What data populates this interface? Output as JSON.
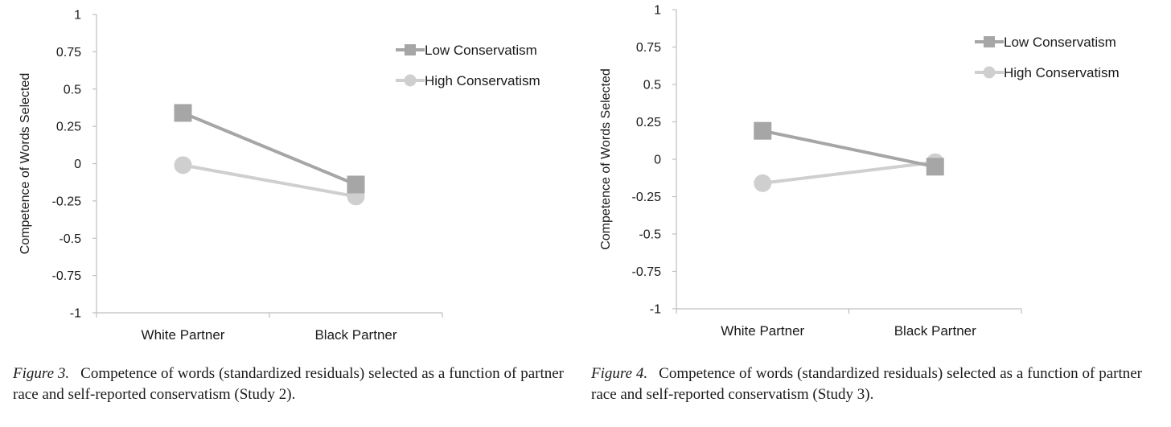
{
  "figures": [
    {
      "caption_label": "Figure 3.",
      "caption_text": "Competence of words (standardized residuals) selected as a function of partner race and self-reported conservatism (Study 2).",
      "chart_data": {
        "type": "line",
        "categories": [
          "White Partner",
          "Black Partner"
        ],
        "series": [
          {
            "name": "Low Conservatism",
            "values": [
              0.34,
              -0.14
            ],
            "color": "#a6a6a6",
            "marker": "square"
          },
          {
            "name": "High Conservatism",
            "values": [
              -0.01,
              -0.22
            ],
            "color": "#cfcfcf",
            "marker": "circle"
          }
        ],
        "ylabel": "Competence of Words Selected",
        "xlabel": "",
        "ylim": [
          -1,
          1
        ],
        "yticks": [
          "1",
          "0.75",
          "0.5",
          "0.25",
          "0",
          "-0.25",
          "-0.5",
          "-0.75",
          "-1"
        ],
        "grid": false,
        "legend": "top-right"
      }
    },
    {
      "caption_label": "Figure 4.",
      "caption_text": "Competence of words (standardized residuals) selected as a function of partner race and self-reported conservatism (Study 3).",
      "chart_data": {
        "type": "line",
        "categories": [
          "White Partner",
          "Black Partner"
        ],
        "series": [
          {
            "name": "Low Conservatism",
            "values": [
              0.19,
              -0.05
            ],
            "color": "#a6a6a6",
            "marker": "square"
          },
          {
            "name": "High Conservatism",
            "values": [
              -0.16,
              -0.02
            ],
            "color": "#cfcfcf",
            "marker": "circle"
          }
        ],
        "ylabel": "Competence of Words Selected",
        "xlabel": "",
        "ylim": [
          -1,
          1
        ],
        "yticks": [
          "1",
          "0.75",
          "0.5",
          "0.25",
          "0",
          "-0.25",
          "-0.5",
          "-0.75",
          "-1"
        ],
        "grid": false,
        "legend": "top-right"
      }
    }
  ]
}
